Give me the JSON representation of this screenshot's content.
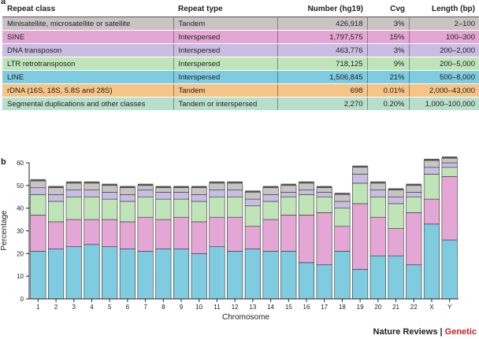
{
  "panel_a": {
    "label": "a"
  },
  "panel_b": {
    "label": "b"
  },
  "table": {
    "headers": [
      "Repeat class",
      "Repeat type",
      "Number (hg19)",
      "Cvg",
      "Length (bp)"
    ],
    "rows": [
      {
        "cells": [
          "Minisatellite, microsatellite or satellite",
          "Tandem",
          "426,918",
          "3%",
          "2–100"
        ],
        "color": "#c8c4c4"
      },
      {
        "cells": [
          "SINE",
          "Interspersed",
          "1,797,575",
          "15%",
          "100–300"
        ],
        "color": "#e4a6d4"
      },
      {
        "cells": [
          "DNA transposon",
          "Interspersed",
          "463,776",
          "3%",
          "200–2,000"
        ],
        "color": "#c9bde2"
      },
      {
        "cells": [
          "LTR retrotransposon",
          "Interspersed",
          "718,125",
          "9%",
          "200–5,000"
        ],
        "color": "#bfe4b8"
      },
      {
        "cells": [
          "LINE",
          "Interspersed",
          "1,506,845",
          "21%",
          "500–8,000"
        ],
        "color": "#7fcbe0"
      },
      {
        "cells": [
          "rDNA (16S, 18S, 5.8S and 28S)",
          "Tandem",
          "698",
          "0.01%",
          "2,000–43,000"
        ],
        "color": "#f6c487"
      },
      {
        "cells": [
          "Segmental duplications and other classes",
          "Tandem or interspersed",
          "2,270",
          "0.20%",
          "1,000–100,000"
        ],
        "color": "#b8dfcc"
      }
    ]
  },
  "chart_data": {
    "type": "bar",
    "stacked": true,
    "categories": [
      "1",
      "2",
      "3",
      "4",
      "5",
      "6",
      "7",
      "8",
      "9",
      "10",
      "11",
      "12",
      "13",
      "14",
      "15",
      "16",
      "17",
      "18",
      "19",
      "20",
      "21",
      "22",
      "X",
      "Y"
    ],
    "series": [
      {
        "color": "#7fcbe0",
        "values": [
          21,
          22,
          23,
          24,
          23,
          22,
          21,
          22,
          22,
          20,
          23,
          21,
          22,
          21,
          21,
          16,
          15,
          21,
          13,
          19,
          19,
          15,
          33,
          26
        ]
      },
      {
        "color": "#e4a6d4",
        "values": [
          16,
          12,
          12,
          11,
          12,
          12,
          15,
          13,
          14,
          14,
          13,
          15,
          10,
          14,
          16,
          21,
          23,
          11,
          29,
          17,
          12,
          23,
          11,
          28
        ]
      },
      {
        "color": "#bfe4b8",
        "values": [
          9,
          9,
          10,
          10,
          9,
          9,
          9,
          9,
          8,
          9,
          9,
          9,
          9,
          8,
          8,
          9,
          7,
          8,
          9,
          9,
          11,
          7,
          11,
          4
        ]
      },
      {
        "color": "#c9bde2",
        "values": [
          3,
          3,
          3,
          3,
          3,
          3,
          3,
          3,
          3,
          3,
          3,
          3,
          3,
          3,
          2,
          2,
          2,
          3,
          4,
          3,
          3,
          2,
          3,
          2
        ]
      },
      {
        "color": "#c8c4c4",
        "values": [
          3,
          3,
          3,
          3,
          3,
          3,
          2,
          2,
          2,
          3,
          3,
          3,
          3,
          3,
          3,
          3,
          2,
          3,
          3,
          3,
          3,
          3,
          3,
          2
        ]
      }
    ],
    "ylabel": "Percentage",
    "xlabel": "Chromosome",
    "ylim": [
      0,
      60
    ],
    "yticks": [
      0,
      10,
      20,
      30,
      40,
      50,
      60
    ],
    "grid": false
  },
  "credit": {
    "prefix": "Nature Reviews | ",
    "suffix": "Genetic",
    "suffix_color": "#cc1f1f"
  }
}
